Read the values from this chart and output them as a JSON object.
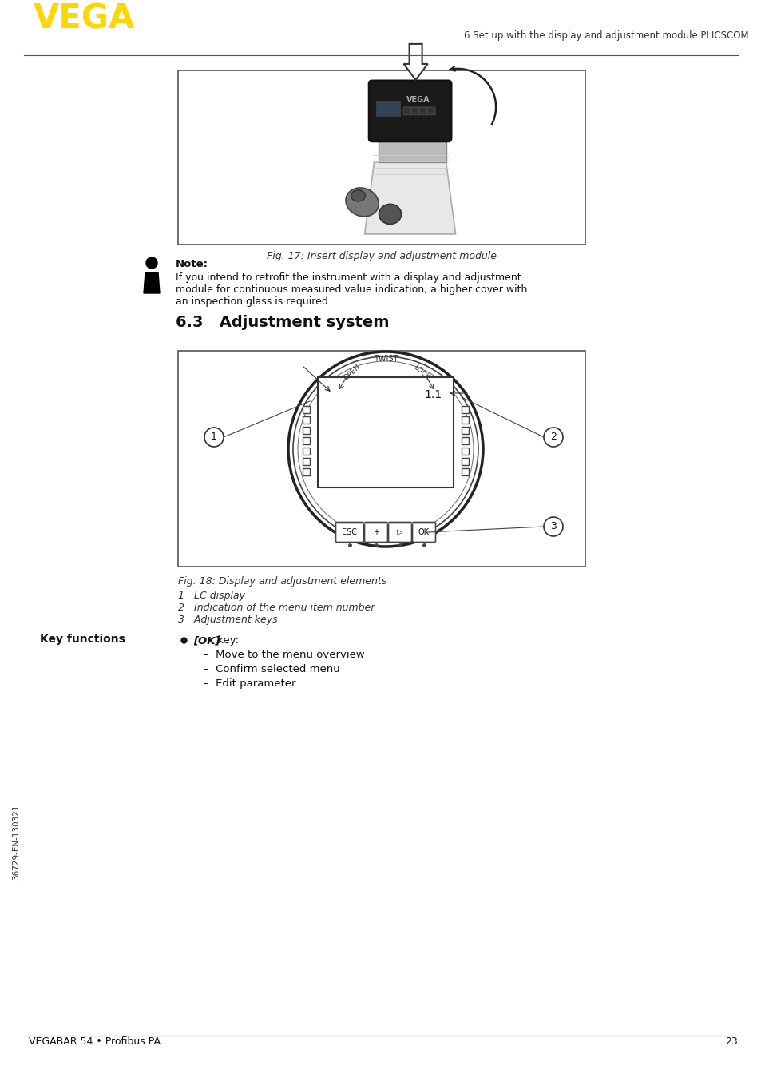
{
  "page_bg": "#ffffff",
  "vega_color": "#FFD700",
  "vega_text": "VEGA",
  "header_right_text": "6 Set up with the display and adjustment module PLICSCOM",
  "footer_left_text": "VEGABAR 54 • Profibus PA",
  "footer_right_text": "23",
  "sidebar_text": "36729-EN-130321",
  "fig17_caption": "Fig. 17: Insert display and adjustment module",
  "note_bold": "Note:",
  "note_text_line1": "If you intend to retrofit the instrument with a display and adjustment",
  "note_text_line2": "module for continuous measured value indication, a higher cover with",
  "note_text_line3": "an inspection glass is required.",
  "section_title": "6.3   Adjustment system",
  "fig18_caption": "Fig. 18: Display and adjustment elements",
  "fig18_item1": "1   LC display",
  "fig18_item2": "2   Indication of the menu item number",
  "fig18_item3": "3   Adjustment keys",
  "key_functions_title": "Key functions",
  "key_ok_italic": "[OK]",
  "key_ok_normal": " key:",
  "key_ok_items": [
    "Move to the menu overview",
    "Confirm selected menu",
    "Edit parameter"
  ]
}
